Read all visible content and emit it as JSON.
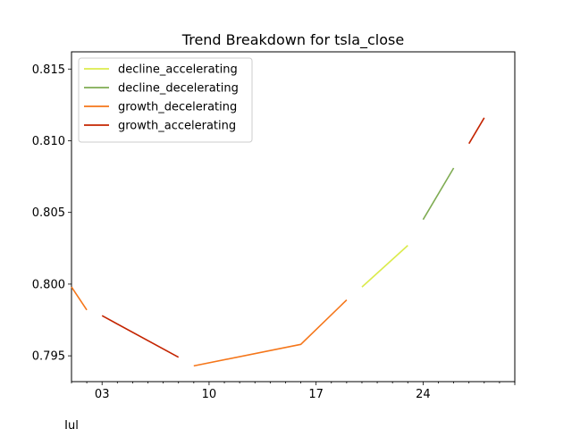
{
  "chart_data": {
    "type": "line",
    "title": "Trend Breakdown for tsla_close",
    "xlabel": "",
    "ylabel": "",
    "x_ticks": [
      {
        "day": 3,
        "label": "03"
      },
      {
        "day": 10,
        "label": "10"
      },
      {
        "day": 17,
        "label": "17"
      },
      {
        "day": 24,
        "label": "24"
      }
    ],
    "x_secondary_label": "Jul",
    "xlim": [
      1,
      30
    ],
    "ylim": [
      0.7932,
      0.8162
    ],
    "y_ticks": [
      0.795,
      0.8,
      0.805,
      0.81,
      0.815
    ],
    "y_tick_labels": [
      "0.795",
      "0.800",
      "0.805",
      "0.810",
      "0.815"
    ],
    "grid": false,
    "legend_position": "top-left",
    "series": [
      {
        "name": "decline_accelerating",
        "color": "#dbeb4c",
        "segments": [
          [
            [
              20,
              0.7998
            ],
            [
              23,
              0.8027
            ]
          ]
        ]
      },
      {
        "name": "decline_decelerating",
        "color": "#7fac53",
        "segments": [
          [
            [
              24,
              0.8045
            ],
            [
              26,
              0.8081
            ]
          ]
        ]
      },
      {
        "name": "growth_decelerating",
        "color": "#f5761a",
        "segments": [
          [
            [
              1,
              0.7998
            ],
            [
              2,
              0.7982
            ]
          ],
          [
            [
              9,
              0.7943
            ],
            [
              16,
              0.7958
            ],
            [
              19,
              0.7989
            ]
          ]
        ]
      },
      {
        "name": "growth_accelerating",
        "color": "#c42400",
        "segments": [
          [
            [
              3,
              0.7978
            ],
            [
              8,
              0.7949
            ]
          ],
          [
            [
              27,
              0.8098
            ],
            [
              28,
              0.8116
            ]
          ]
        ]
      }
    ]
  }
}
